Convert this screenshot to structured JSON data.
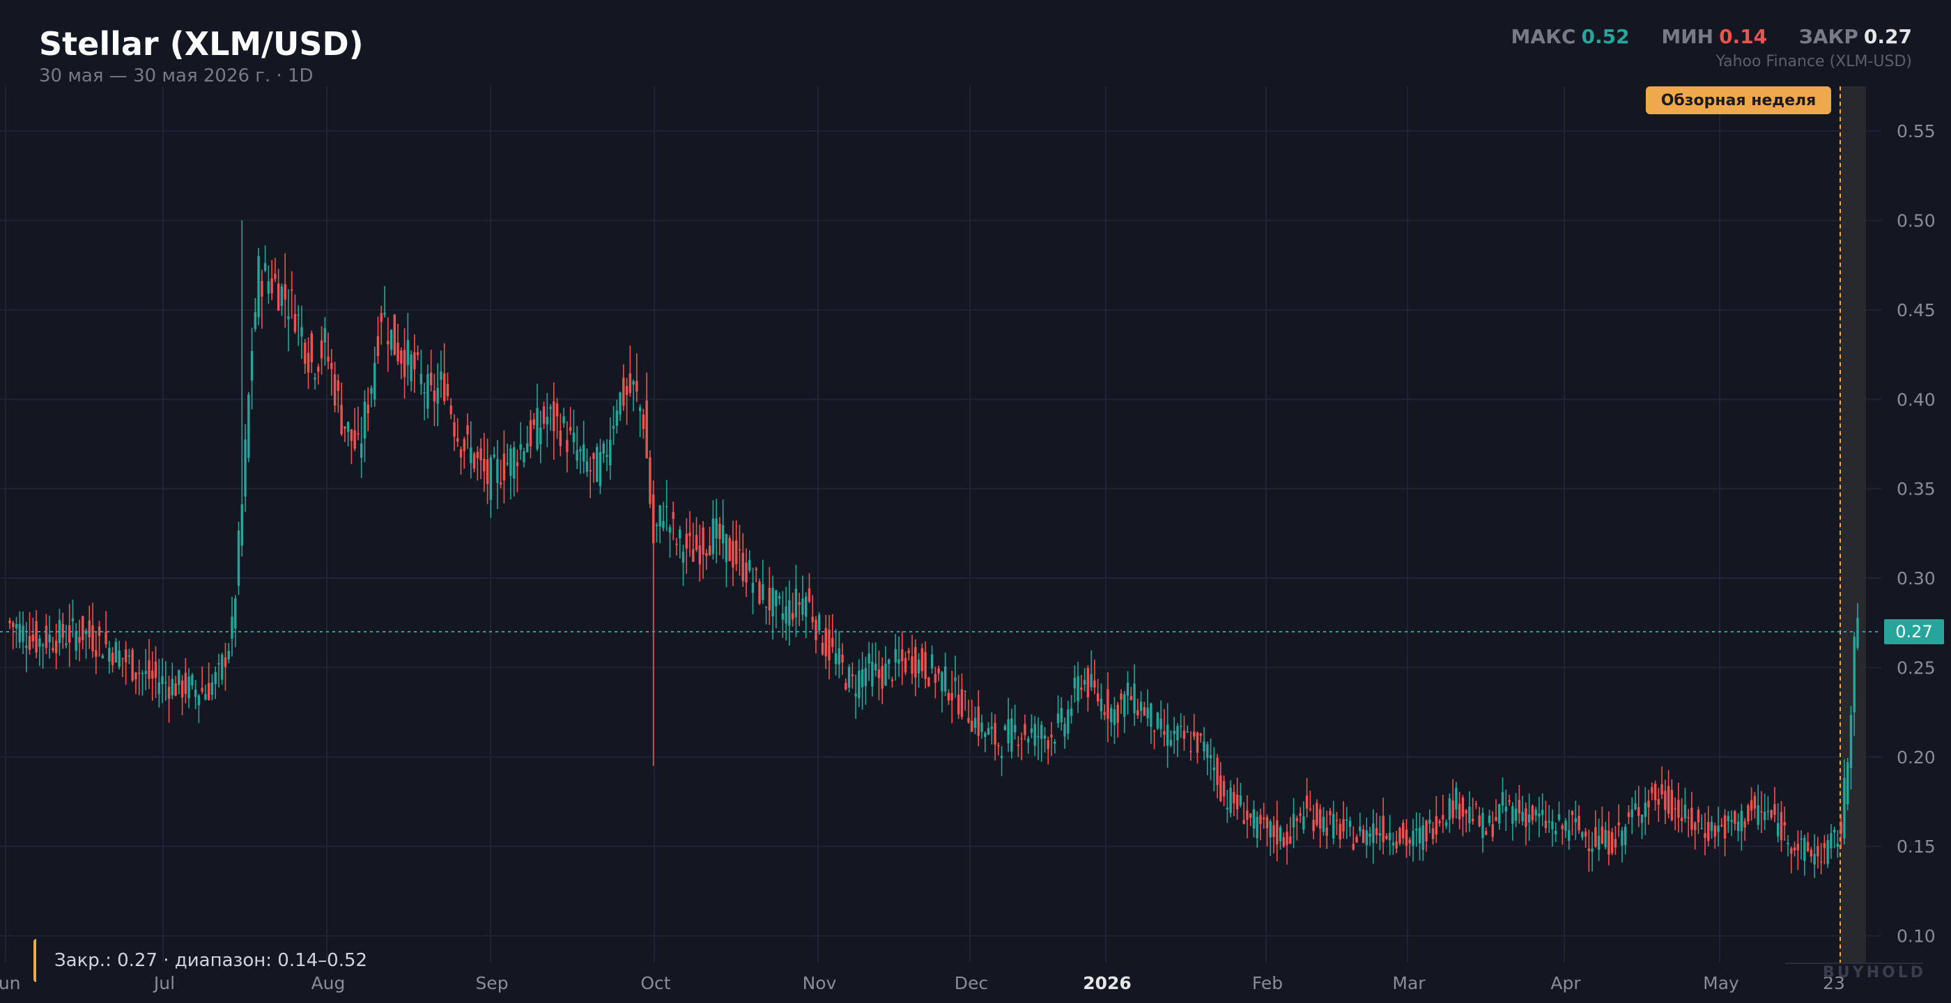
{
  "header": {
    "title": "Stellar (XLM/USD)",
    "subtitle": "30 мая — 30 мая 2026 г. · 1D",
    "source": "Yahoo Finance (XLM-USD)"
  },
  "stats": {
    "max_label": "МАКС",
    "max_value": "0.52",
    "min_label": "МИН",
    "min_value": "0.14",
    "close_label": "ЗАКР",
    "close_value": "0.27"
  },
  "event": {
    "label": "Обзорная неделя"
  },
  "footer": {
    "note": "Закр.: 0.27 · диапазон: 0.14–0.52"
  },
  "watermark": "BUYHOLD",
  "last_price_label": "0.27",
  "colors": {
    "up": "#26a69a",
    "down": "#ef5350",
    "accent": "#f0a94a",
    "background": "#131722"
  },
  "chart_data": {
    "type": "candlestick",
    "title": "Stellar (XLM/USD)",
    "interval": "1D",
    "x_ticks": [
      {
        "label": "Jun",
        "bold": false
      },
      {
        "label": "Jul",
        "bold": false
      },
      {
        "label": "Aug",
        "bold": false
      },
      {
        "label": "Sep",
        "bold": false
      },
      {
        "label": "Oct",
        "bold": false
      },
      {
        "label": "Nov",
        "bold": false
      },
      {
        "label": "Dec",
        "bold": false
      },
      {
        "label": "2026",
        "bold": true
      },
      {
        "label": "Feb",
        "bold": false
      },
      {
        "label": "Mar",
        "bold": false
      },
      {
        "label": "Apr",
        "bold": false
      },
      {
        "label": "May",
        "bold": false
      },
      {
        "label": "23",
        "bold": false
      }
    ],
    "y_ticks": [
      "0.10",
      "0.15",
      "0.20",
      "0.25",
      "0.30",
      "0.35",
      "0.40",
      "0.45",
      "0.50",
      "0.55"
    ],
    "ylim": [
      0.085,
      0.575
    ],
    "last_close": 0.27,
    "max": 0.52,
    "min": 0.14,
    "grid": true,
    "close_path": [
      [
        0,
        0.275
      ],
      [
        8,
        0.265
      ],
      [
        22,
        0.27
      ],
      [
        31,
        0.26
      ],
      [
        41,
        0.245
      ],
      [
        50,
        0.24
      ],
      [
        59,
        0.237
      ],
      [
        63,
        0.245
      ],
      [
        67,
        0.27
      ],
      [
        70,
        0.34
      ],
      [
        73,
        0.43
      ],
      [
        75,
        0.47
      ],
      [
        80,
        0.465
      ],
      [
        86,
        0.45
      ],
      [
        91,
        0.42
      ],
      [
        95,
        0.43
      ],
      [
        100,
        0.39
      ],
      [
        105,
        0.37
      ],
      [
        109,
        0.41
      ],
      [
        112,
        0.45
      ],
      [
        116,
        0.43
      ],
      [
        121,
        0.42
      ],
      [
        127,
        0.4
      ],
      [
        131,
        0.41
      ],
      [
        135,
        0.38
      ],
      [
        139,
        0.37
      ],
      [
        144,
        0.355
      ],
      [
        150,
        0.365
      ],
      [
        157,
        0.38
      ],
      [
        162,
        0.39
      ],
      [
        166,
        0.385
      ],
      [
        171,
        0.37
      ],
      [
        175,
        0.36
      ],
      [
        179,
        0.365
      ],
      [
        183,
        0.4
      ],
      [
        188,
        0.405
      ],
      [
        191,
        0.39
      ],
      [
        194,
        0.32
      ],
      [
        197,
        0.34
      ],
      [
        201,
        0.32
      ],
      [
        206,
        0.315
      ],
      [
        212,
        0.325
      ],
      [
        217,
        0.315
      ],
      [
        222,
        0.305
      ],
      [
        227,
        0.29
      ],
      [
        233,
        0.28
      ],
      [
        240,
        0.29
      ],
      [
        245,
        0.265
      ],
      [
        249,
        0.255
      ],
      [
        254,
        0.24
      ],
      [
        258,
        0.25
      ],
      [
        262,
        0.245
      ],
      [
        266,
        0.25
      ],
      [
        272,
        0.255
      ],
      [
        278,
        0.248
      ],
      [
        283,
        0.24
      ],
      [
        288,
        0.228
      ],
      [
        293,
        0.215
      ],
      [
        298,
        0.208
      ],
      [
        303,
        0.215
      ],
      [
        308,
        0.213
      ],
      [
        313,
        0.212
      ],
      [
        318,
        0.22
      ],
      [
        323,
        0.245
      ],
      [
        327,
        0.235
      ],
      [
        333,
        0.225
      ],
      [
        337,
        0.235
      ],
      [
        343,
        0.225
      ],
      [
        347,
        0.213
      ],
      [
        353,
        0.21
      ],
      [
        358,
        0.208
      ],
      [
        362,
        0.2
      ],
      [
        366,
        0.178
      ],
      [
        371,
        0.172
      ],
      [
        376,
        0.16
      ],
      [
        380,
        0.158
      ],
      [
        385,
        0.155
      ],
      [
        390,
        0.17
      ],
      [
        395,
        0.165
      ],
      [
        400,
        0.16
      ],
      [
        406,
        0.155
      ],
      [
        411,
        0.16
      ],
      [
        417,
        0.158
      ],
      [
        422,
        0.152
      ],
      [
        428,
        0.16
      ],
      [
        432,
        0.17
      ],
      [
        436,
        0.175
      ],
      [
        441,
        0.168
      ],
      [
        445,
        0.158
      ],
      [
        450,
        0.172
      ],
      [
        455,
        0.17
      ],
      [
        461,
        0.165
      ],
      [
        466,
        0.16
      ],
      [
        471,
        0.162
      ],
      [
        476,
        0.155
      ],
      [
        481,
        0.152
      ],
      [
        486,
        0.158
      ],
      [
        490,
        0.17
      ],
      [
        495,
        0.178
      ],
      [
        500,
        0.175
      ],
      [
        505,
        0.165
      ],
      [
        510,
        0.16
      ],
      [
        515,
        0.16
      ],
      [
        520,
        0.162
      ],
      [
        525,
        0.17
      ],
      [
        530,
        0.168
      ],
      [
        535,
        0.158
      ],
      [
        540,
        0.148
      ],
      [
        545,
        0.145
      ],
      [
        549,
        0.15
      ],
      [
        552,
        0.16
      ],
      [
        554,
        0.2
      ],
      [
        556,
        0.265
      ],
      [
        557,
        0.27
      ]
    ],
    "notable_wicks": [
      {
        "index": 194,
        "low": 0.195
      },
      {
        "index": 70,
        "high": 0.5
      }
    ]
  }
}
